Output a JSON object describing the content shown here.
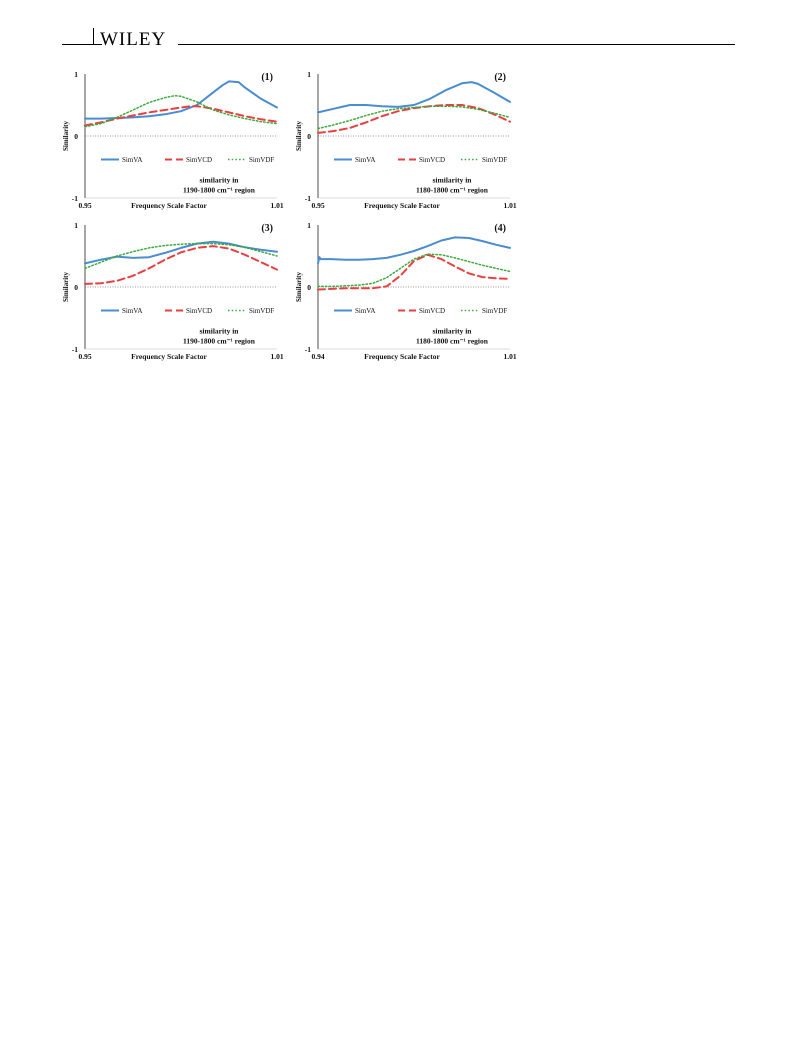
{
  "header": {
    "logo_text": "WILEY"
  },
  "colors": {
    "SimVA": "#4a8cd0",
    "SimVCD": "#e84040",
    "SimVDF": "#3aaa3a"
  },
  "chart_data": [
    {
      "type": "line",
      "panel_label": "(1)",
      "xlabel": "Frequency Scale Factor",
      "ylabel": "Similarity",
      "xlim": [
        0.95,
        1.01
      ],
      "ylim": [
        -1,
        1
      ],
      "x_tick_labels": [
        "0.95",
        "1.01"
      ],
      "y_tick_labels": [
        "1",
        "0",
        "-1"
      ],
      "annotation_line1": "similarity  in",
      "annotation_line2": "1190-1800 cm⁻¹ region",
      "legend": [
        "SimVA",
        "SimVCD",
        "SimVDF"
      ],
      "series": [
        {
          "name": "SimVA",
          "x": [
            0.95,
            0.955,
            0.96,
            0.965,
            0.97,
            0.975,
            0.98,
            0.985,
            0.99,
            0.993,
            0.995,
            0.998,
            1.0,
            1.005,
            1.01
          ],
          "values": [
            0.28,
            0.28,
            0.29,
            0.3,
            0.32,
            0.35,
            0.4,
            0.5,
            0.7,
            0.82,
            0.88,
            0.87,
            0.78,
            0.6,
            0.46
          ]
        },
        {
          "name": "SimVCD",
          "x": [
            0.95,
            0.955,
            0.96,
            0.965,
            0.97,
            0.975,
            0.98,
            0.983,
            0.985,
            0.99,
            0.995,
            1.0,
            1.005,
            1.01
          ],
          "values": [
            0.17,
            0.22,
            0.28,
            0.33,
            0.38,
            0.42,
            0.46,
            0.48,
            0.48,
            0.44,
            0.38,
            0.32,
            0.27,
            0.23
          ]
        },
        {
          "name": "SimVDF",
          "x": [
            0.95,
            0.955,
            0.96,
            0.965,
            0.97,
            0.975,
            0.978,
            0.98,
            0.985,
            0.99,
            0.995,
            1.0,
            1.005,
            1.01
          ],
          "values": [
            0.15,
            0.2,
            0.3,
            0.42,
            0.54,
            0.62,
            0.65,
            0.64,
            0.55,
            0.42,
            0.34,
            0.28,
            0.23,
            0.2
          ]
        }
      ]
    },
    {
      "type": "line",
      "panel_label": "(2)",
      "xlabel": "Frequency Scale Factor",
      "ylabel": "Similarity",
      "xlim": [
        0.95,
        1.01
      ],
      "ylim": [
        -1,
        1
      ],
      "x_tick_labels": [
        "0.95",
        "1.01"
      ],
      "y_tick_labels": [
        "1",
        "0",
        "-1"
      ],
      "annotation_line1": "similarity  in",
      "annotation_line2": "1180-1800 cm⁻¹ region",
      "legend": [
        "SimVA",
        "SimVCD",
        "SimVDF"
      ],
      "series": [
        {
          "name": "SimVA",
          "x": [
            0.95,
            0.955,
            0.96,
            0.965,
            0.97,
            0.975,
            0.98,
            0.985,
            0.99,
            0.995,
            0.998,
            1.0,
            1.005,
            1.01
          ],
          "values": [
            0.38,
            0.44,
            0.5,
            0.5,
            0.48,
            0.47,
            0.5,
            0.6,
            0.74,
            0.85,
            0.87,
            0.84,
            0.7,
            0.55
          ]
        },
        {
          "name": "SimVCD",
          "x": [
            0.95,
            0.955,
            0.96,
            0.965,
            0.97,
            0.975,
            0.98,
            0.985,
            0.99,
            0.995,
            1.0,
            1.005,
            1.01
          ],
          "values": [
            0.05,
            0.08,
            0.13,
            0.22,
            0.32,
            0.4,
            0.45,
            0.48,
            0.5,
            0.5,
            0.45,
            0.35,
            0.23
          ]
        },
        {
          "name": "SimVDF",
          "x": [
            0.95,
            0.955,
            0.96,
            0.965,
            0.97,
            0.975,
            0.98,
            0.985,
            0.99,
            0.995,
            1.0,
            1.005,
            1.01
          ],
          "values": [
            0.12,
            0.18,
            0.25,
            0.33,
            0.4,
            0.44,
            0.46,
            0.48,
            0.48,
            0.47,
            0.43,
            0.37,
            0.3
          ]
        }
      ]
    },
    {
      "type": "line",
      "panel_label": "(3)",
      "xlabel": "Frequency Scale Factor",
      "ylabel": "Similarity",
      "xlim": [
        0.95,
        1.01
      ],
      "ylim": [
        -1,
        1
      ],
      "x_tick_labels": [
        "0.95",
        "1.01"
      ],
      "y_tick_labels": [
        "1",
        "0",
        "-1"
      ],
      "annotation_line1": "similarity  in",
      "annotation_line2": "1190-1800 cm⁻¹ region",
      "legend": [
        "SimVA",
        "SimVCD",
        "SimVDF"
      ],
      "series": [
        {
          "name": "SimVA",
          "x": [
            0.95,
            0.955,
            0.96,
            0.965,
            0.97,
            0.975,
            0.98,
            0.985,
            0.99,
            0.995,
            1.0,
            1.005,
            1.01
          ],
          "values": [
            0.38,
            0.44,
            0.49,
            0.47,
            0.48,
            0.55,
            0.63,
            0.7,
            0.73,
            0.7,
            0.64,
            0.6,
            0.57
          ]
        },
        {
          "name": "SimVCD",
          "x": [
            0.95,
            0.955,
            0.96,
            0.965,
            0.97,
            0.975,
            0.98,
            0.985,
            0.99,
            0.995,
            1.0,
            1.005,
            1.01
          ],
          "values": [
            0.05,
            0.06,
            0.1,
            0.18,
            0.3,
            0.44,
            0.56,
            0.63,
            0.66,
            0.62,
            0.52,
            0.4,
            0.28
          ]
        },
        {
          "name": "SimVDF",
          "x": [
            0.95,
            0.955,
            0.96,
            0.965,
            0.97,
            0.975,
            0.98,
            0.985,
            0.99,
            0.995,
            1.0,
            1.005,
            1.01
          ],
          "values": [
            0.3,
            0.4,
            0.5,
            0.57,
            0.63,
            0.67,
            0.69,
            0.7,
            0.7,
            0.68,
            0.64,
            0.57,
            0.5
          ]
        }
      ]
    },
    {
      "type": "line",
      "panel_label": "(4)",
      "xlabel": "Frequency Scale Factor",
      "ylabel": "Similarity",
      "xlim": [
        0.94,
        1.01
      ],
      "ylim": [
        -1,
        1
      ],
      "x_tick_labels": [
        "0.94",
        "1.01"
      ],
      "y_tick_labels": [
        "1",
        "0",
        "-1"
      ],
      "annotation_line1": "similarity  in",
      "annotation_line2": "1180-1800 cm⁻¹ region",
      "legend": [
        "SimVA",
        "SimVCD",
        "SimVDF"
      ],
      "series": [
        {
          "name": "SimVA",
          "x": [
            0.94,
            0.9405,
            0.941,
            0.945,
            0.95,
            0.955,
            0.96,
            0.965,
            0.97,
            0.975,
            0.98,
            0.985,
            0.99,
            0.995,
            1.0,
            1.005,
            1.01
          ],
          "values": [
            0.38,
            0.48,
            0.45,
            0.45,
            0.44,
            0.44,
            0.45,
            0.47,
            0.52,
            0.58,
            0.66,
            0.75,
            0.8,
            0.79,
            0.74,
            0.68,
            0.63
          ]
        },
        {
          "name": "SimVCD",
          "x": [
            0.94,
            0.945,
            0.95,
            0.955,
            0.96,
            0.965,
            0.97,
            0.975,
            0.98,
            0.985,
            0.99,
            0.995,
            1.0,
            1.005,
            1.01
          ],
          "values": [
            -0.04,
            -0.03,
            -0.02,
            -0.02,
            -0.02,
            0.01,
            0.18,
            0.42,
            0.52,
            0.45,
            0.33,
            0.22,
            0.16,
            0.14,
            0.13
          ]
        },
        {
          "name": "SimVDF",
          "x": [
            0.94,
            0.945,
            0.95,
            0.955,
            0.96,
            0.965,
            0.97,
            0.975,
            0.98,
            0.985,
            0.99,
            0.995,
            1.0,
            1.005,
            1.01
          ],
          "values": [
            0.01,
            0.01,
            0.02,
            0.03,
            0.06,
            0.15,
            0.3,
            0.45,
            0.53,
            0.52,
            0.47,
            0.41,
            0.35,
            0.3,
            0.25
          ]
        }
      ]
    }
  ]
}
